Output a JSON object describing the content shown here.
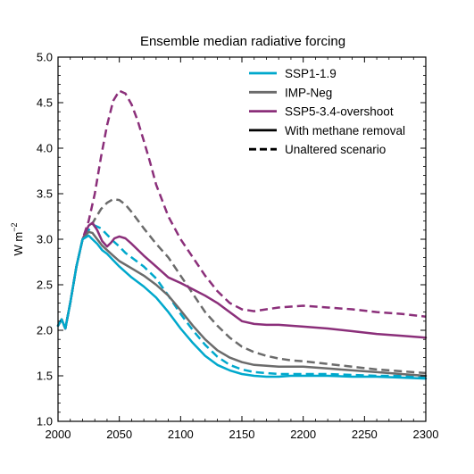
{
  "chart_data": {
    "type": "line",
    "title": "Ensemble median radiative forcing",
    "xlabel": "",
    "ylabel": "W m",
    "ylabel_superscript": "−2",
    "xlim": [
      2000,
      2300
    ],
    "ylim": [
      1.0,
      5.0
    ],
    "xticks": [
      2000,
      2050,
      2100,
      2150,
      2200,
      2250,
      2300
    ],
    "yticks": [
      1.0,
      1.5,
      2.0,
      2.5,
      3.0,
      3.5,
      4.0,
      4.5,
      5.0
    ],
    "xtick_labels": [
      "2000",
      "2050",
      "2100",
      "2150",
      "2200",
      "2250",
      "2300"
    ],
    "ytick_labels": [
      "1.0",
      "1.5",
      "2.0",
      "2.5",
      "3.0",
      "3.5",
      "4.0",
      "4.5",
      "5.0"
    ],
    "grid": false,
    "legend_position": "top-right",
    "legend": [
      {
        "label": "SSP1-1.9",
        "color": "#00a8cc",
        "style": "solid"
      },
      {
        "label": "IMP-Neg",
        "color": "#6b6b6b",
        "style": "solid"
      },
      {
        "label": "SSP5-3.4-overshoot",
        "color": "#8b2f7a",
        "style": "solid"
      },
      {
        "label": "With methane removal",
        "color": "#000000",
        "style": "solid"
      },
      {
        "label": "Unaltered scenario",
        "color": "#000000",
        "style": "dashed"
      }
    ],
    "series": [
      {
        "scenario": "SSP5-3.4-overshoot",
        "variant": "Unaltered scenario",
        "color": "#8b2f7a",
        "dash": true,
        "x": [
          2000,
          2003,
          2006,
          2010,
          2015,
          2020,
          2025,
          2030,
          2035,
          2040,
          2045,
          2050,
          2055,
          2060,
          2065,
          2070,
          2075,
          2080,
          2090,
          2100,
          2110,
          2120,
          2130,
          2140,
          2150,
          2160,
          2170,
          2180,
          2190,
          2200,
          2220,
          2240,
          2260,
          2280,
          2300
        ],
        "y": [
          2.05,
          2.12,
          2.02,
          2.3,
          2.7,
          3.0,
          3.2,
          3.5,
          3.9,
          4.25,
          4.52,
          4.63,
          4.6,
          4.48,
          4.3,
          4.08,
          3.85,
          3.6,
          3.25,
          3.0,
          2.8,
          2.6,
          2.43,
          2.3,
          2.23,
          2.21,
          2.23,
          2.25,
          2.26,
          2.27,
          2.25,
          2.23,
          2.2,
          2.18,
          2.15
        ]
      },
      {
        "scenario": "IMP-Neg",
        "variant": "Unaltered scenario",
        "color": "#6b6b6b",
        "dash": true,
        "x": [
          2000,
          2003,
          2006,
          2010,
          2015,
          2020,
          2025,
          2030,
          2035,
          2040,
          2045,
          2050,
          2055,
          2060,
          2070,
          2080,
          2090,
          2100,
          2110,
          2120,
          2130,
          2140,
          2150,
          2160,
          2170,
          2180,
          2190,
          2200,
          2220,
          2240,
          2260,
          2280,
          2300
        ],
        "y": [
          2.05,
          2.12,
          2.02,
          2.3,
          2.7,
          3.0,
          3.1,
          3.22,
          3.33,
          3.4,
          3.44,
          3.43,
          3.38,
          3.3,
          3.12,
          2.95,
          2.8,
          2.6,
          2.4,
          2.2,
          2.05,
          1.92,
          1.82,
          1.76,
          1.72,
          1.69,
          1.67,
          1.66,
          1.63,
          1.6,
          1.57,
          1.55,
          1.53
        ]
      },
      {
        "scenario": "SSP1-1.9",
        "variant": "Unaltered scenario",
        "color": "#00a8cc",
        "dash": true,
        "x": [
          2000,
          2003,
          2006,
          2010,
          2015,
          2020,
          2025,
          2030,
          2035,
          2040,
          2045,
          2050,
          2055,
          2060,
          2070,
          2080,
          2090,
          2100,
          2110,
          2120,
          2130,
          2140,
          2150,
          2160,
          2170,
          2180,
          2190,
          2200,
          2220,
          2240,
          2260,
          2280,
          2300
        ],
        "y": [
          2.05,
          2.12,
          2.02,
          2.3,
          2.7,
          3.0,
          3.1,
          3.15,
          3.12,
          3.05,
          2.98,
          2.92,
          2.85,
          2.8,
          2.7,
          2.57,
          2.38,
          2.18,
          2.0,
          1.84,
          1.71,
          1.62,
          1.57,
          1.54,
          1.53,
          1.52,
          1.52,
          1.52,
          1.52,
          1.51,
          1.5,
          1.5,
          1.49
        ]
      },
      {
        "scenario": "SSP5-3.4-overshoot",
        "variant": "With methane removal",
        "color": "#8b2f7a",
        "dash": false,
        "x": [
          2000,
          2003,
          2006,
          2010,
          2015,
          2020,
          2025,
          2028,
          2032,
          2036,
          2040,
          2043,
          2046,
          2050,
          2055,
          2060,
          2070,
          2080,
          2090,
          2100,
          2110,
          2120,
          2130,
          2140,
          2150,
          2160,
          2170,
          2180,
          2190,
          2200,
          2220,
          2240,
          2260,
          2280,
          2300
        ],
        "y": [
          2.05,
          2.12,
          2.02,
          2.3,
          2.7,
          3.0,
          3.15,
          3.18,
          3.1,
          2.98,
          2.92,
          2.96,
          3.01,
          3.03,
          3.01,
          2.95,
          2.82,
          2.7,
          2.58,
          2.52,
          2.45,
          2.38,
          2.3,
          2.2,
          2.1,
          2.07,
          2.06,
          2.06,
          2.05,
          2.04,
          2.02,
          1.99,
          1.96,
          1.94,
          1.92
        ]
      },
      {
        "scenario": "IMP-Neg",
        "variant": "With methane removal",
        "color": "#6b6b6b",
        "dash": false,
        "x": [
          2000,
          2003,
          2006,
          2010,
          2015,
          2020,
          2025,
          2028,
          2032,
          2036,
          2040,
          2045,
          2050,
          2060,
          2070,
          2080,
          2090,
          2100,
          2110,
          2120,
          2130,
          2140,
          2150,
          2160,
          2170,
          2180,
          2190,
          2200,
          2220,
          2240,
          2260,
          2280,
          2300
        ],
        "y": [
          2.05,
          2.12,
          2.02,
          2.3,
          2.7,
          3.0,
          3.08,
          3.07,
          3.0,
          2.93,
          2.88,
          2.82,
          2.76,
          2.68,
          2.6,
          2.5,
          2.38,
          2.22,
          2.05,
          1.9,
          1.78,
          1.7,
          1.65,
          1.62,
          1.61,
          1.6,
          1.6,
          1.6,
          1.58,
          1.56,
          1.54,
          1.52,
          1.5
        ]
      },
      {
        "scenario": "SSP1-1.9",
        "variant": "With methane removal",
        "color": "#00a8cc",
        "dash": false,
        "x": [
          2000,
          2003,
          2006,
          2010,
          2015,
          2020,
          2025,
          2028,
          2032,
          2036,
          2040,
          2045,
          2050,
          2060,
          2070,
          2080,
          2090,
          2100,
          2110,
          2120,
          2130,
          2140,
          2150,
          2160,
          2170,
          2180,
          2190,
          2200,
          2220,
          2240,
          2260,
          2280,
          2300
        ],
        "y": [
          2.05,
          2.12,
          2.02,
          2.3,
          2.7,
          3.0,
          3.04,
          3.0,
          2.95,
          2.88,
          2.84,
          2.77,
          2.7,
          2.58,
          2.48,
          2.36,
          2.2,
          2.02,
          1.86,
          1.72,
          1.62,
          1.56,
          1.52,
          1.5,
          1.49,
          1.49,
          1.5,
          1.5,
          1.5,
          1.49,
          1.49,
          1.48,
          1.47
        ]
      }
    ]
  }
}
